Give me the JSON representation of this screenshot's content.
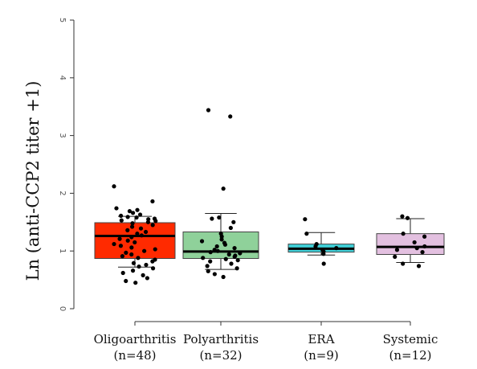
{
  "chart_data": {
    "type": "box",
    "title": "",
    "xlabel": "",
    "ylabel": "Ln (anti-CCP2 titer +1)",
    "ylim": [
      -0.1,
      5.1
    ],
    "yticks": [
      "0",
      "1",
      "2",
      "3",
      "4",
      "5"
    ],
    "grid": false,
    "legend": "none",
    "categories": [
      {
        "name": "Oligoarthritis",
        "n_label": "(n=48)"
      },
      {
        "name": "Polyarthritis",
        "n_label": "(n=32)"
      },
      {
        "name": "ERA",
        "n_label": "(n=9)"
      },
      {
        "name": "Systemic",
        "n_label": "(n=12)"
      }
    ],
    "boxes": [
      {
        "category": "Oligoarthritis",
        "color": "#ff2a00",
        "whisker_low": 0.72,
        "q1": 0.87,
        "median": 1.26,
        "q3": 1.49,
        "whisker_high": 1.6,
        "points": [
          2.12,
          1.86,
          1.74,
          1.71,
          1.69,
          1.66,
          1.63,
          1.61,
          1.59,
          1.58,
          1.56,
          1.55,
          1.53,
          1.52,
          1.5,
          1.48,
          1.45,
          1.42,
          1.39,
          1.36,
          1.33,
          1.3,
          1.27,
          1.24,
          1.21,
          1.18,
          1.15,
          1.12,
          1.09,
          1.06,
          1.03,
          1.0,
          0.97,
          0.94,
          0.91,
          0.88,
          0.85,
          0.82,
          0.79,
          0.76,
          0.73,
          0.7,
          0.66,
          0.62,
          0.58,
          0.53,
          0.48,
          0.45
        ]
      },
      {
        "category": "Polyarthritis",
        "color": "#8fd19a",
        "whisker_low": 0.68,
        "q1": 0.87,
        "median": 0.99,
        "q3": 1.33,
        "whisker_high": 1.65,
        "points": [
          3.44,
          3.33,
          2.08,
          1.58,
          1.56,
          1.5,
          1.4,
          1.3,
          1.25,
          1.2,
          1.17,
          1.14,
          1.11,
          1.08,
          1.05,
          1.02,
          1.0,
          0.98,
          0.96,
          0.94,
          0.92,
          0.9,
          0.88,
          0.86,
          0.84,
          0.82,
          0.78,
          0.74,
          0.7,
          0.65,
          0.6,
          0.55
        ]
      },
      {
        "category": "ERA",
        "color": "#40d0d8",
        "whisker_low": 0.93,
        "q1": 0.98,
        "median": 1.04,
        "q3": 1.12,
        "whisker_high": 1.32,
        "points": [
          1.55,
          1.3,
          1.12,
          1.08,
          1.05,
          1.02,
          0.99,
          0.95,
          0.78
        ]
      },
      {
        "category": "Systemic",
        "color": "#e3c0e0",
        "whisker_low": 0.8,
        "q1": 0.94,
        "median": 1.07,
        "q3": 1.3,
        "whisker_high": 1.56,
        "points": [
          1.6,
          1.57,
          1.3,
          1.25,
          1.15,
          1.08,
          1.05,
          1.02,
          0.98,
          0.9,
          0.78,
          0.74
        ]
      }
    ]
  }
}
